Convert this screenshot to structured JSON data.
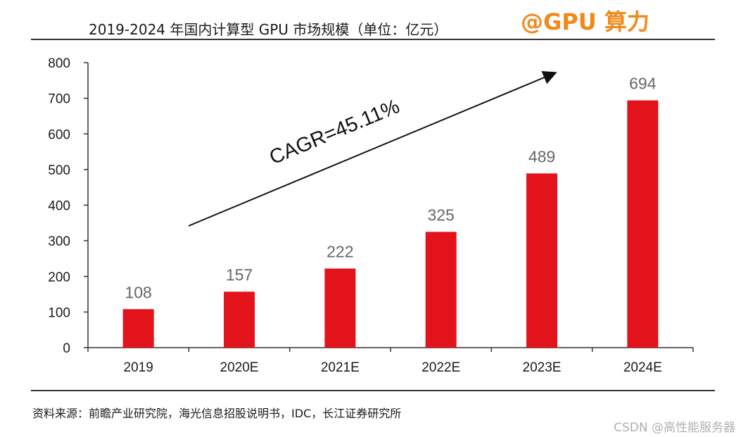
{
  "header": {
    "title": "2019-2024 年国内计算型 GPU 市场规模（单位：亿元）",
    "watermark": "@GPU 算力"
  },
  "footer": {
    "source": "资料来源：前瞻产业研究院，海光信息招股说明书，IDC，长江证券研究所",
    "watermark": "CSDN @高性能服务器"
  },
  "colors": {
    "bar": "#e2131b",
    "watermark": "#f08a1c"
  },
  "chart_data": {
    "type": "bar",
    "title": "2019-2024 年国内计算型 GPU 市场规模（单位：亿元）",
    "categories": [
      "2019",
      "2020E",
      "2021E",
      "2022E",
      "2023E",
      "2024E"
    ],
    "values": [
      108,
      157,
      222,
      325,
      489,
      694
    ],
    "ylim": [
      0,
      800
    ],
    "yticks": [
      0,
      100,
      200,
      300,
      400,
      500,
      600,
      700,
      800
    ],
    "xlabel": "",
    "ylabel": "",
    "grid": false,
    "annotation": "CAGR=45.11%"
  }
}
